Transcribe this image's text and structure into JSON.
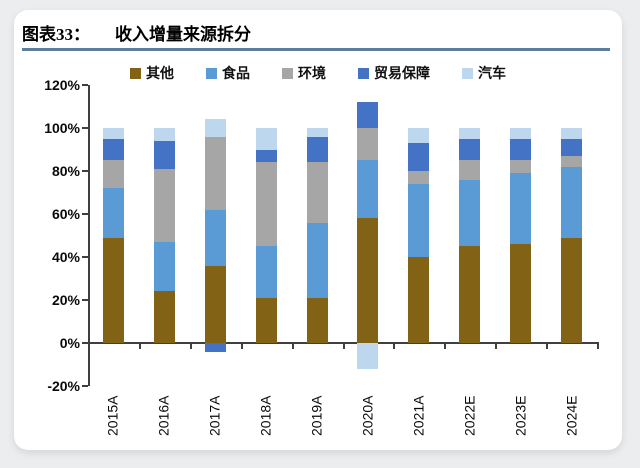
{
  "page": {
    "background": "#ECEDEF"
  },
  "header": {
    "figure_label": "图表33：",
    "title": "收入增量来源拆分",
    "underline_color": "#5B7E9D"
  },
  "chart_data": {
    "type": "bar",
    "stacked": true,
    "title": "收入增量来源拆分",
    "xlabel": "",
    "ylabel": "",
    "ylim": [
      -20,
      120
    ],
    "grid": false,
    "legend_position": "top",
    "axis_color": "#3F3F3F",
    "categories": [
      "2015A",
      "2016A",
      "2017A",
      "2018A",
      "2019A",
      "2020A",
      "2021A",
      "2022E",
      "2023E",
      "2024E"
    ],
    "series": [
      {
        "id": "other",
        "name": "其他",
        "color": "#826214",
        "values": [
          49,
          24,
          36,
          21,
          21,
          58,
          40,
          45,
          46,
          49
        ]
      },
      {
        "id": "food",
        "name": "食品",
        "color": "#5B9BD5",
        "values": [
          23,
          23,
          26,
          24,
          35,
          27,
          34,
          31,
          33,
          33
        ]
      },
      {
        "id": "environment",
        "name": "环境",
        "color": "#A6A6A6",
        "values": [
          13,
          34,
          34,
          39,
          28,
          15,
          6,
          9,
          6,
          5
        ]
      },
      {
        "id": "trade-protection",
        "name": "贸易保障",
        "color": "#4472C4",
        "values": [
          10,
          13,
          -4,
          6,
          12,
          12,
          13,
          10,
          10,
          8
        ]
      },
      {
        "id": "auto",
        "name": "汽车",
        "color": "#BDD7EE",
        "values": [
          5,
          6,
          8,
          10,
          4,
          -12,
          7,
          5,
          5,
          5
        ]
      }
    ],
    "y_ticks": [
      120,
      100,
      80,
      60,
      40,
      20,
      0,
      -20
    ],
    "y_tick_labels": [
      "120%",
      "100%",
      "80%",
      "60%",
      "40%",
      "20%",
      "0%",
      "-20%"
    ]
  }
}
